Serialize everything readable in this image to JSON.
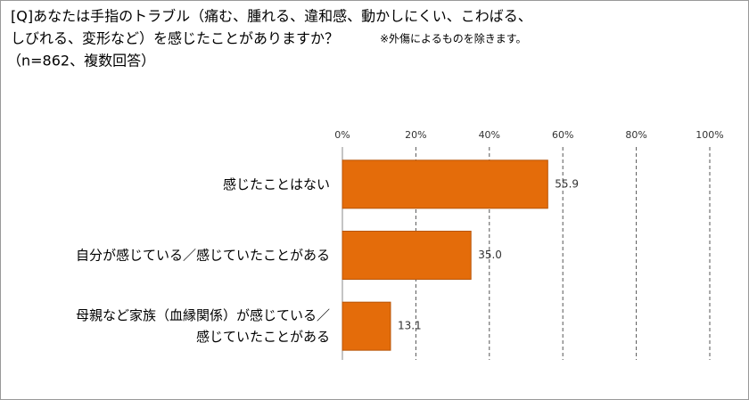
{
  "chart_data": {
    "type": "bar",
    "orientation": "horizontal",
    "title_lines": [
      "[Q]あなたは手指のトラブル（痛む、腫れる、違和感、動かしにくい、こわばる、",
      "しびれる、変形など）を感じたことがありますか？"
    ],
    "note": "※外傷によるものを除きます。",
    "subtitle": "（n=862、複数回答）",
    "categories": [
      "感じたことはない",
      "自分が感じている／感じていたことがある",
      "母親など家族（血縁関係）が感じている／\n感じていたことがある"
    ],
    "values": [
      55.9,
      35.0,
      13.1
    ],
    "value_labels": [
      "55.9",
      "35.0",
      "13.1"
    ],
    "color": "#e46c0a",
    "xlim": [
      0,
      100
    ],
    "xticks": [
      {
        "value": 0,
        "label": "0%"
      },
      {
        "value": 20,
        "label": "20%"
      },
      {
        "value": 40,
        "label": "40%"
      },
      {
        "value": 60,
        "label": "60%"
      },
      {
        "value": 80,
        "label": "80%"
      },
      {
        "value": 100,
        "label": "100%"
      }
    ],
    "grid": true
  }
}
